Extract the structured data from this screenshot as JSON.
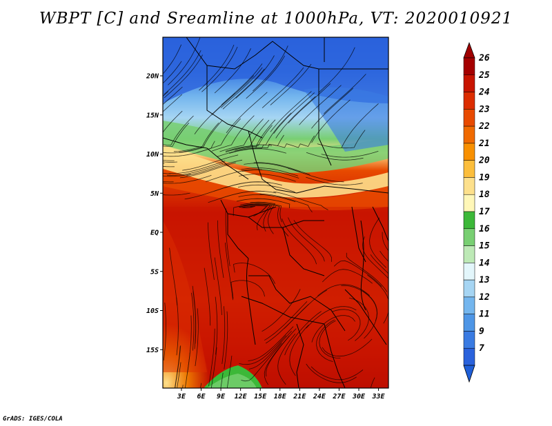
{
  "title": "WBPT [C] and Sreamline at 1000hPa, VT: 2020010921",
  "credit": "GrADS: IGES/COLA",
  "lat_ticks": [
    {
      "label": "20N",
      "lat": 20
    },
    {
      "label": "15N",
      "lat": 15
    },
    {
      "label": "10N",
      "lat": 10
    },
    {
      "label": "5N",
      "lat": 5
    },
    {
      "label": "EQ",
      "lat": 0
    },
    {
      "label": "5S",
      "lat": -5
    },
    {
      "label": "10S",
      "lat": -10
    },
    {
      "label": "15S",
      "lat": -15
    }
  ],
  "lon_ticks": [
    {
      "label": "3E",
      "lon": 3
    },
    {
      "label": "6E",
      "lon": 6
    },
    {
      "label": "9E",
      "lon": 9
    },
    {
      "label": "12E",
      "lon": 12
    },
    {
      "label": "15E",
      "lon": 15
    },
    {
      "label": "18E",
      "lon": 18
    },
    {
      "label": "21E",
      "lon": 21
    },
    {
      "label": "24E",
      "lon": 24
    },
    {
      "label": "27E",
      "lon": 27
    },
    {
      "label": "30E",
      "lon": 30
    },
    {
      "label": "33E",
      "lon": 33
    }
  ],
  "colorbar": {
    "labels": [
      "26",
      "25",
      "24",
      "23",
      "22",
      "21",
      "20",
      "19",
      "18",
      "17",
      "16",
      "15",
      "14",
      "13",
      "12",
      "11",
      "9",
      "7"
    ],
    "colors": [
      "#a50000",
      "#c81400",
      "#dc2d00",
      "#e84a00",
      "#f06a00",
      "#f89000",
      "#fcbe3c",
      "#fde08c",
      "#fff7b8",
      "#3cb838",
      "#78cf72",
      "#bde9b6",
      "#e3f6fb",
      "#a6d5f3",
      "#74b6ee",
      "#4e96e6",
      "#3a7be2",
      "#2a62dc"
    ],
    "top_arrow_color": "#a00000",
    "bottom_arrow_color": "#1f5fd8"
  }
}
